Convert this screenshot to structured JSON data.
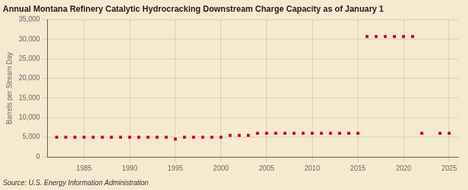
{
  "chart_data": {
    "type": "scatter",
    "title": "Annual Montana Refinery Catalytic Hydrocracking Downstream Charge Capacity as of January 1",
    "ylabel": "Barrels per Stream Day",
    "source": "Source: U.S. Energy Information Administration",
    "x": [
      1982,
      1983,
      1984,
      1985,
      1986,
      1987,
      1988,
      1989,
      1990,
      1991,
      1992,
      1993,
      1994,
      1995,
      1996,
      1997,
      1998,
      1999,
      2000,
      2001,
      2002,
      2003,
      2004,
      2005,
      2006,
      2007,
      2008,
      2009,
      2010,
      2011,
      2012,
      2013,
      2014,
      2015,
      2016,
      2017,
      2018,
      2019,
      2020,
      2021,
      2022,
      2023,
      2024,
      2025
    ],
    "values": [
      5000,
      5000,
      5000,
      5000,
      5000,
      5000,
      5000,
      5000,
      5000,
      5000,
      5000,
      5000,
      5000,
      4500,
      5000,
      5000,
      5000,
      5000,
      5000,
      5500,
      5500,
      5500,
      6000,
      6000,
      6000,
      6000,
      6000,
      6000,
      6000,
      6000,
      6000,
      6000,
      6000,
      6000,
      30700,
      30700,
      30700,
      30700,
      30700,
      30700,
      6000,
      null,
      6000,
      6000
    ],
    "color": "#cc0000",
    "marker": "square",
    "xlim": [
      1981,
      2026
    ],
    "xticks": [
      1985,
      1990,
      1995,
      2000,
      2005,
      2010,
      2015,
      2020,
      2025
    ],
    "ylim": [
      0,
      35000
    ],
    "yticks": [
      0,
      {
        "value": 5000,
        "label": "5,000"
      },
      {
        "value": 10000,
        "label": "10,000"
      },
      {
        "value": 15000,
        "label": "15,000"
      },
      {
        "value": 20000,
        "label": "20,000"
      },
      {
        "value": 25000,
        "label": "25,000"
      },
      {
        "value": 30000,
        "label": "30,000"
      },
      {
        "value": 35000,
        "label": "35,000"
      }
    ],
    "grid": true
  }
}
